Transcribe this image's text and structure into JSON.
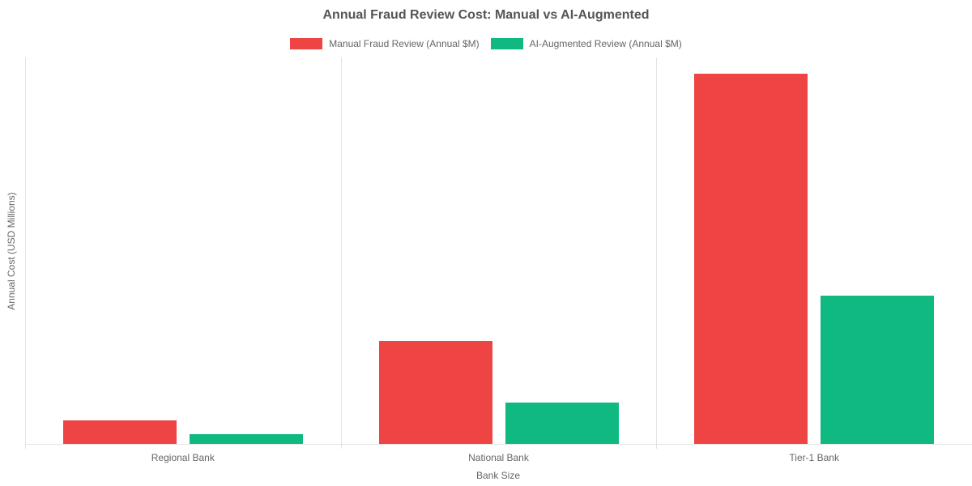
{
  "chart_data": {
    "type": "bar",
    "title": "Annual Fraud Review Cost: Manual vs AI-Augmented",
    "xlabel": "Bank Size",
    "ylabel": "Annual Cost (USD Millions)",
    "categories": [
      "Regional Bank",
      "National Bank",
      "Tier-1 Bank"
    ],
    "series": [
      {
        "name": "Manual Fraud Review (Annual $M)",
        "color": "#ef4444",
        "values": [
          7.2,
          32,
          115
        ]
      },
      {
        "name": "AI-Augmented Review (Annual $M)",
        "color": "#10b981",
        "values": [
          3,
          12.8,
          46
        ]
      }
    ],
    "ylim": [
      0,
      120
    ],
    "y_ticks_visible": false,
    "grid": "vertical-category-boundaries-only",
    "legend_position": "top",
    "colors": {
      "axis_grid": "#e3e3e3",
      "text_muted": "#666666",
      "title_text": "#555555",
      "background": "#ffffff"
    }
  }
}
